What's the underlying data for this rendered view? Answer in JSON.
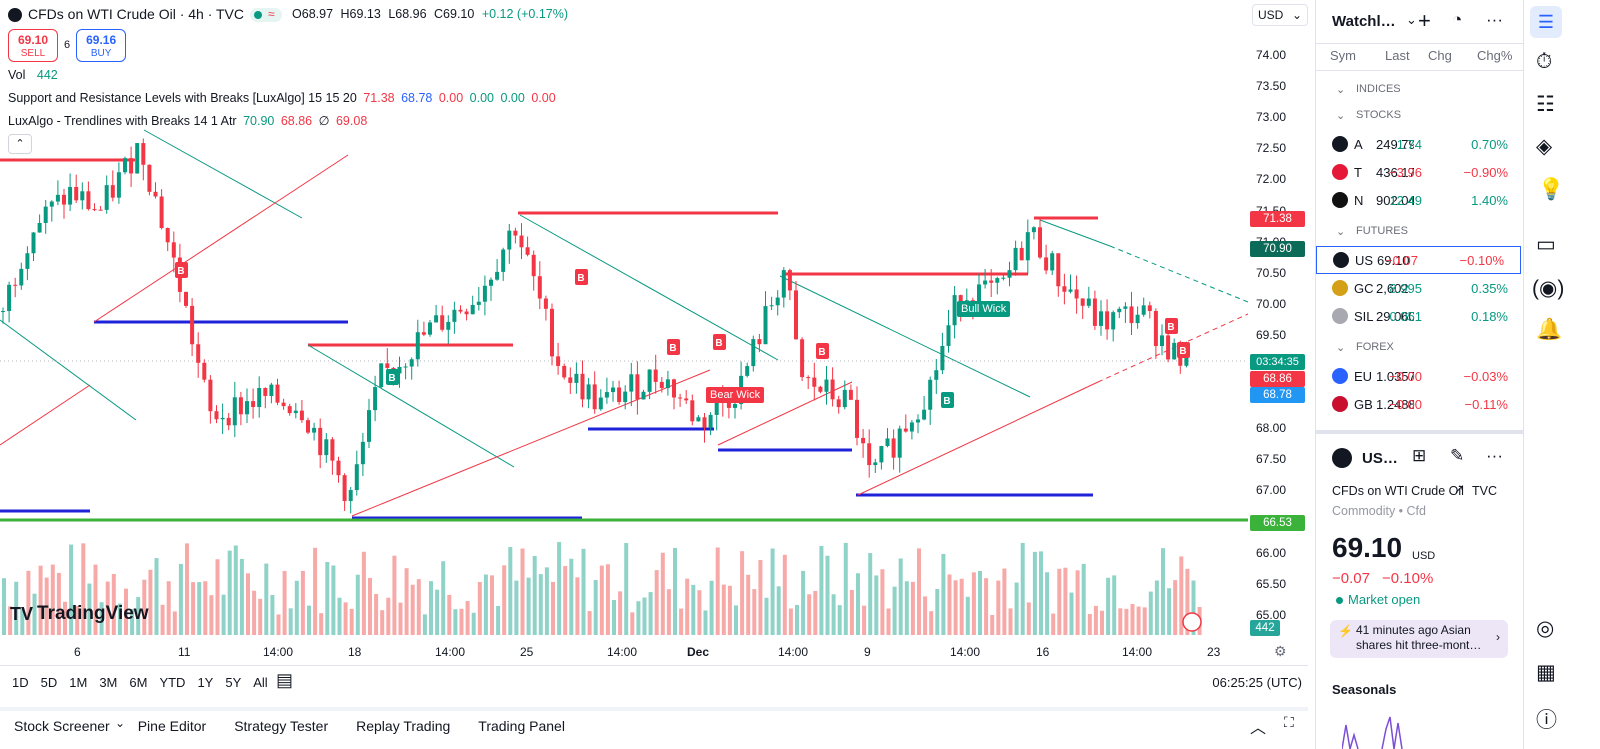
{
  "header": {
    "symbol_title": "CFDs on WTI Crude Oil · 4h · TVC",
    "ohlc": {
      "o": "O68.97",
      "h": "H69.13",
      "l": "L68.96",
      "c": "C69.10",
      "chg": "+0.12 (+0.17%)"
    },
    "sell_price": "69.10",
    "sell_label": "SELL",
    "spread": "6",
    "buy_price": "69.16",
    "buy_label": "BUY",
    "vol_label": "Vol",
    "vol_value": "442",
    "ind1_name": "Support and Resistance Levels with Breaks [LuxAlgo] 15 15 20",
    "ind1_vals": [
      "71.38",
      "68.78",
      "0.00",
      "0.00",
      "0.00",
      "0.00"
    ],
    "ind2_name": "LuxAlgo - Trendlines with Breaks 14 1 Atr",
    "ind2_vals": [
      "70.90",
      "68.86",
      "∅",
      "69.08"
    ],
    "currency": "USD"
  },
  "price_axis": {
    "ticks": [
      "74.00",
      "73.50",
      "73.00",
      "72.50",
      "72.00",
      "71.50",
      "71.00",
      "70.50",
      "70.00",
      "69.50",
      "69.00",
      "68.50",
      "68.00",
      "67.50",
      "67.00",
      "66.50",
      "66.00",
      "65.50",
      "65.00"
    ],
    "badges": {
      "r1": "71.38",
      "t1": "70.90",
      "countdown": "03:34:35",
      "p1": "68.86",
      "p2": "68.78",
      "s1": "66.53",
      "vol": "442"
    }
  },
  "time_axis": [
    "6",
    "11",
    "14:00",
    "18",
    "14:00",
    "25",
    "14:00",
    "Dec",
    "14:00",
    "9",
    "14:00",
    "16",
    "14:00",
    "23"
  ],
  "chart_labels": {
    "b": "B",
    "bear_wick": "Bear Wick",
    "bull_wick": "Bull Wick"
  },
  "bottom_bar": {
    "ranges": [
      "1D",
      "5D",
      "1M",
      "3M",
      "6M",
      "YTD",
      "1Y",
      "5Y",
      "All"
    ],
    "clock": "06:25:25 (UTC)"
  },
  "panel_bar": {
    "tabs": [
      "Stock Screener",
      "Pine Editor",
      "Strategy Tester",
      "Replay Trading",
      "Trading Panel"
    ]
  },
  "logo_text": "TradingView",
  "watchlist": {
    "title": "Watchl…",
    "cols": [
      "Sym",
      "Last",
      "Chg",
      "Chg%"
    ],
    "sections": [
      "INDICES",
      "STOCKS",
      "FUTURES",
      "FOREX"
    ],
    "stocks": [
      {
        "sym": "A",
        "last": "249.79",
        "chg": "1.74",
        "pct": "0.70%"
      },
      {
        "sym": "T",
        "last": "436.17",
        "chg": "−3.96",
        "pct": "−0.90%"
      },
      {
        "sym": "N",
        "last": "902.04",
        "chg": "12.49",
        "pct": "1.40%"
      }
    ],
    "futures": [
      {
        "sym": "US",
        "last": "69.10",
        "chg": "−0.07",
        "pct": "−0.10%"
      },
      {
        "sym": "GC",
        "last": "2,602",
        "chg": "8.995",
        "pct": "0.35%"
      },
      {
        "sym": "SIL",
        "last": "29.060",
        "chg": "0.051",
        "pct": "0.18%"
      }
    ],
    "forex": [
      {
        "sym": "EU",
        "last": "1.0357",
        "chg": "−0.00",
        "pct": "−0.03%"
      },
      {
        "sym": "GB",
        "last": "1.2488",
        "chg": "−0.00",
        "pct": "−0.11%"
      }
    ]
  },
  "details": {
    "sym": "US…",
    "name": "CFDs on WTI Crude Oil",
    "exchange": "TVC",
    "type": "Commodity • Cfd",
    "price": "69.10",
    "currency": "USD",
    "chg": "−0.07",
    "pct": "−0.10%",
    "status": "Market open",
    "news_time": "41 minutes ago",
    "news_text": "Asian shares hit three-mont…",
    "seasonals": "Seasonals"
  },
  "colors": {
    "up": "#089981",
    "down": "#f23645",
    "blue": "#2962ff",
    "support": "#1e22d8",
    "green_line": "#3bb33b"
  }
}
